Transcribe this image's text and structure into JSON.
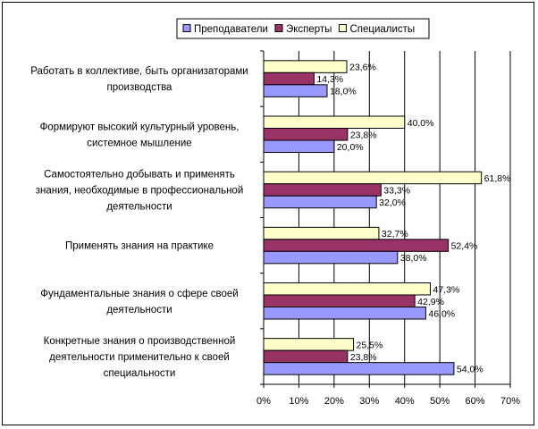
{
  "chart_data": {
    "type": "bar",
    "orientation": "horizontal",
    "categories": [
      [
        "Работать в коллективе, быть организаторами",
        "производства"
      ],
      [
        "Формируют высокий культурный уровень,",
        "системное мышление"
      ],
      [
        "Самостоятельно добывать и применять",
        "знания, необходимые в профессиональной",
        "деятельности"
      ],
      [
        "Применять знания на практике"
      ],
      [
        "Фундаментальные знания о сфере своей",
        "деятельности"
      ],
      [
        "Конкретные знания о производственной",
        "деятельности применительно к своей",
        "специальности"
      ]
    ],
    "series": [
      {
        "name": "Специалисты",
        "color": "#FFFFCC",
        "values": [
          23.6,
          40.0,
          61.8,
          32.7,
          47.3,
          25.5
        ],
        "labels": [
          "23,6%",
          "40,0%",
          "61,8%",
          "32,7%",
          "47,3%",
          "25,5%"
        ]
      },
      {
        "name": "Эксперты",
        "color": "#993366",
        "values": [
          14.3,
          23.8,
          33.3,
          52.4,
          42.9,
          23.8
        ],
        "labels": [
          "14,3%",
          "23,8%",
          "33,3%",
          "52,4%",
          "42,9%",
          "23,8%"
        ]
      },
      {
        "name": "Преподаватели",
        "color": "#9999FF",
        "values": [
          18.0,
          20.0,
          32.0,
          38.0,
          46.0,
          54.0
        ],
        "labels": [
          "18,0%",
          "20,0%",
          "32,0%",
          "38,0%",
          "46,0%",
          "54,0%"
        ]
      }
    ],
    "legend_order": [
      "Преподаватели",
      "Эксперты",
      "Специалисты"
    ],
    "legend_position": "top-right",
    "xlim": [
      0,
      70
    ],
    "xticks": [
      "0%",
      "10%",
      "20%",
      "30%",
      "40%",
      "50%",
      "60%",
      "70%"
    ],
    "grid": "vertical"
  }
}
